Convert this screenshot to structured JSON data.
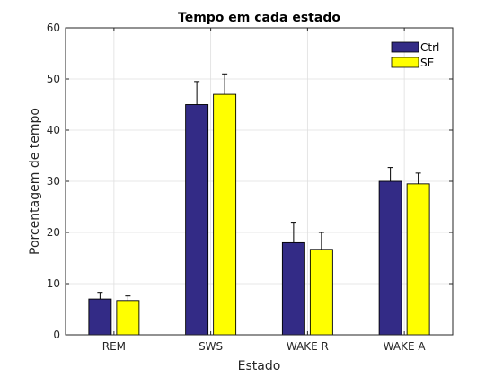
{
  "chart_data": {
    "type": "bar",
    "title": "Tempo em cada estado",
    "xlabel": "Estado",
    "ylabel": "Porcentagem de tempo",
    "categories": [
      "REM",
      "SWS",
      "WAKE R",
      "WAKE A"
    ],
    "ylim": [
      0,
      60
    ],
    "yticks": [
      0,
      10,
      20,
      30,
      40,
      50,
      60
    ],
    "grid": true,
    "legend_position": "top-right",
    "series": [
      {
        "name": "Ctrl",
        "color": "#332b86",
        "values": [
          7.0,
          45.0,
          18.0,
          30.0
        ],
        "errors": [
          1.3,
          4.5,
          4.0,
          2.7
        ]
      },
      {
        "name": "SE",
        "color": "#ffff00",
        "values": [
          6.7,
          47.0,
          16.7,
          29.5
        ],
        "errors": [
          0.9,
          4.0,
          3.3,
          2.1
        ]
      }
    ]
  }
}
